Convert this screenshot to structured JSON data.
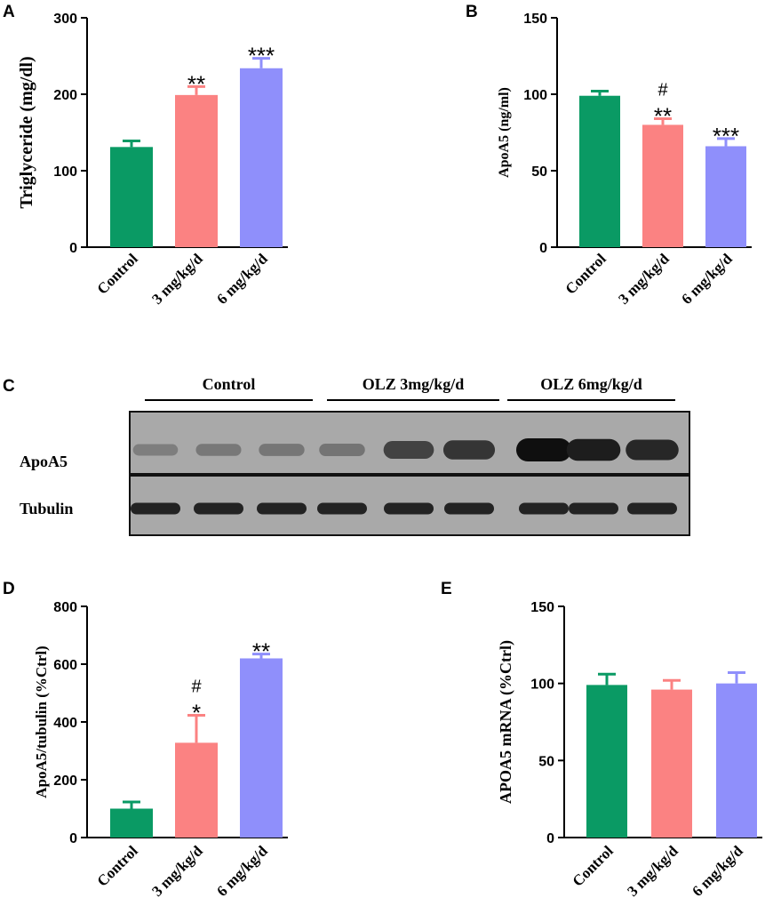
{
  "colors": {
    "control": "#0a9a64",
    "low": "#fb8282",
    "high": "#8f8ffb"
  },
  "chart_data": [
    {
      "panel": "A",
      "type": "bar",
      "categories": [
        "Control",
        "3 mg/kg/d",
        "6 mg/kg/d"
      ],
      "values": [
        131,
        199,
        234
      ],
      "errors": [
        8,
        11,
        13
      ],
      "significance": [
        "",
        "**",
        "***"
      ],
      "ylabel": "Triglyceride (mg/dl)",
      "ylim": [
        0,
        300
      ],
      "yticks": [
        0,
        100,
        200,
        300
      ]
    },
    {
      "panel": "B",
      "type": "bar",
      "categories": [
        "Control",
        "3 mg/kg/d",
        "6 mg/kg/d"
      ],
      "values": [
        99,
        80,
        66
      ],
      "errors": [
        3,
        4,
        5
      ],
      "significance": [
        "",
        "#\n**",
        "***"
      ],
      "ylabel": "ApoA5 (ng/ml)",
      "ylim": [
        0,
        150
      ],
      "yticks": [
        0,
        50,
        100,
        150
      ]
    },
    {
      "panel": "D",
      "type": "bar",
      "categories": [
        "Control",
        "3 mg/kg/d",
        "6 mg/kg/d"
      ],
      "values": [
        100,
        328,
        620
      ],
      "errors": [
        23,
        95,
        15
      ],
      "significance": [
        "",
        "#\n*",
        "**"
      ],
      "ylabel": "ApoA5/tubulin (%Ctrl)",
      "ylim": [
        0,
        800
      ],
      "yticks": [
        0,
        200,
        400,
        600,
        800
      ]
    },
    {
      "panel": "E",
      "type": "bar",
      "categories": [
        "Control",
        "3 mg/kg/d",
        "6 mg/kg/d"
      ],
      "values": [
        99,
        96,
        100
      ],
      "errors": [
        7,
        6,
        7
      ],
      "significance": [
        "",
        "",
        ""
      ],
      "ylabel": "APOA5 mRNA (%Ctrl)",
      "ylim": [
        0,
        150
      ],
      "yticks": [
        0,
        50,
        100,
        150
      ]
    }
  ],
  "blot": {
    "panel": "C",
    "groups": [
      "Control",
      "OLZ 3mg/kg/d",
      "OLZ 6mg/kg/d"
    ],
    "rows": [
      {
        "label": "ApoA5",
        "intensities": [
          0.18,
          0.22,
          0.24,
          0.25,
          0.62,
          0.72,
          1.0,
          0.9,
          0.82
        ]
      },
      {
        "label": "Tubulin",
        "intensities": [
          0.85,
          0.85,
          0.85,
          0.85,
          0.85,
          0.85,
          0.85,
          0.85,
          0.85
        ]
      }
    ]
  }
}
